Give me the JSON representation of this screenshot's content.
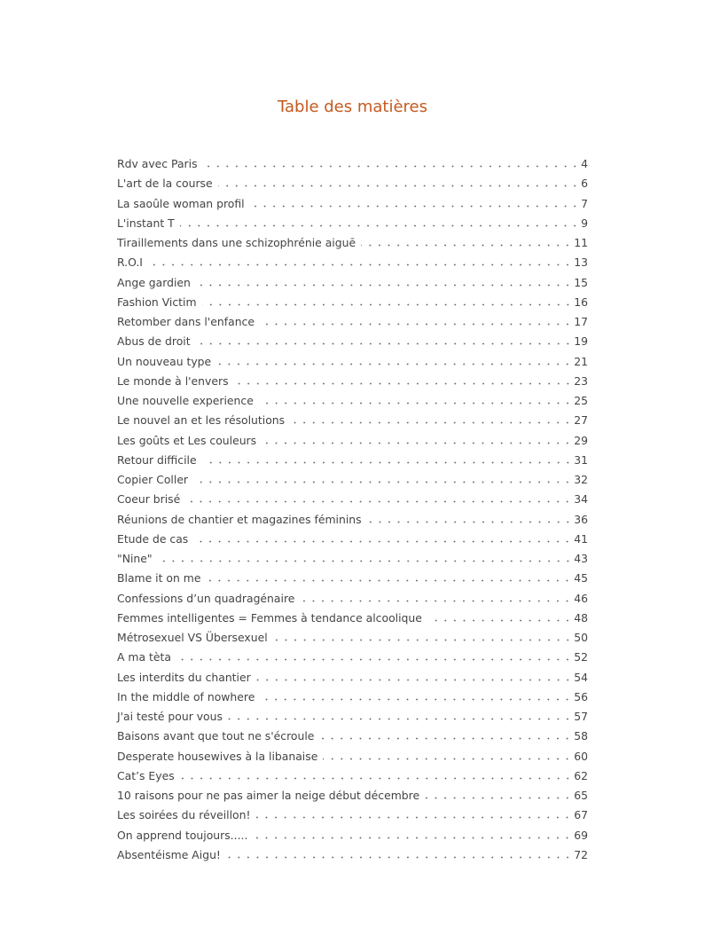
{
  "title": "Table des matières",
  "accent_color": "#c55a1f",
  "entries": [
    {
      "label": "Rdv avec Paris",
      "page": "4"
    },
    {
      "label": "L'art de la course",
      "page": "6"
    },
    {
      "label": "La saoûle woman profil",
      "page": "7"
    },
    {
      "label": "L'instant T",
      "page": "9"
    },
    {
      "label": "Tiraillements dans une schizophrénie aiguē",
      "page": "11"
    },
    {
      "label": "R.O.I",
      "page": "13"
    },
    {
      "label": "Ange gardien",
      "page": "15"
    },
    {
      "label": "Fashion Victim",
      "page": "16"
    },
    {
      "label": "Retomber dans l'enfance",
      "page": "17"
    },
    {
      "label": "Abus de droit",
      "page": "19"
    },
    {
      "label": "Un nouveau type",
      "page": "21"
    },
    {
      "label": "Le monde à l'envers",
      "page": "23"
    },
    {
      "label": "Une nouvelle experience",
      "page": "25"
    },
    {
      "label": "Le nouvel an et les résolutions",
      "page": "27"
    },
    {
      "label": "Les goûts et Les couleurs",
      "page": "29"
    },
    {
      "label": "Retour difficile",
      "page": "31"
    },
    {
      "label": "Copier Coller",
      "page": "32"
    },
    {
      "label": "Coeur brisé",
      "page": "34"
    },
    {
      "label": "Réunions de chantier et magazines féminins",
      "page": "36"
    },
    {
      "label": "Etude de cas",
      "page": "41"
    },
    {
      "label": "\"Nine\"",
      "page": "43"
    },
    {
      "label": "Blame it on me",
      "page": "45"
    },
    {
      "label": "Confessions d’un quadragénaire",
      "page": "46"
    },
    {
      "label": "Femmes intelligentes = Femmes à tendance alcoolique",
      "page": "48"
    },
    {
      "label": "Métrosexuel VS Übersexuel",
      "page": "50"
    },
    {
      "label": "A ma tèta",
      "page": "52"
    },
    {
      "label": "Les interdits du chantier",
      "page": "54"
    },
    {
      "label": "In the middle of nowhere",
      "page": "56"
    },
    {
      "label": "J'ai testé pour vous",
      "page": "57"
    },
    {
      "label": "Baisons avant que tout ne s'écroule",
      "page": "58"
    },
    {
      "label": "Desperate housewives à la libanaise",
      "page": "60"
    },
    {
      "label": "Cat’s Eyes",
      "page": "62"
    },
    {
      "label": "10 raisons pour ne pas aimer la neige début décembre",
      "page": "65"
    },
    {
      "label": "Les soirées du réveillon!",
      "page": "67"
    },
    {
      "label": "On apprend toujours.....",
      "page": "69"
    },
    {
      "label": "Absentéisme Aigu!",
      "page": "72"
    }
  ]
}
